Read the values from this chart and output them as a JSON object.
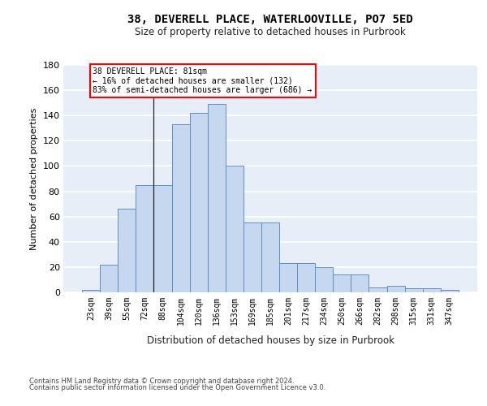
{
  "title_line1": "38, DEVERELL PLACE, WATERLOOVILLE, PO7 5ED",
  "title_line2": "Size of property relative to detached houses in Purbrook",
  "xlabel": "Distribution of detached houses by size in Purbrook",
  "ylabel": "Number of detached properties",
  "categories": [
    "23sqm",
    "39sqm",
    "55sqm",
    "72sqm",
    "88sqm",
    "104sqm",
    "120sqm",
    "136sqm",
    "153sqm",
    "169sqm",
    "185sqm",
    "201sqm",
    "217sqm",
    "234sqm",
    "250sqm",
    "266sqm",
    "282sqm",
    "298sqm",
    "315sqm",
    "331sqm",
    "347sqm"
  ],
  "values": [
    2,
    22,
    66,
    85,
    85,
    133,
    142,
    149,
    100,
    55,
    55,
    23,
    23,
    20,
    14,
    14,
    4,
    5,
    3,
    3,
    2
  ],
  "bar_color": "#c5d8f0",
  "bar_edge_color": "#5b8fc9",
  "annotation_line1": "38 DEVERELL PLACE: 81sqm",
  "annotation_line2": "← 16% of detached houses are smaller (132)",
  "annotation_line3": "83% of semi-detached houses are larger (686) →",
  "ylim_max": 180,
  "yticks": [
    0,
    20,
    40,
    60,
    80,
    100,
    120,
    140,
    160,
    180
  ],
  "bg_color": "#e8eef8",
  "grid_color": "white",
  "footer_line1": "Contains HM Land Registry data © Crown copyright and database right 2024.",
  "footer_line2": "Contains public sector information licensed under the Open Government Licence v3.0.",
  "prop_bar_index": 3.5
}
